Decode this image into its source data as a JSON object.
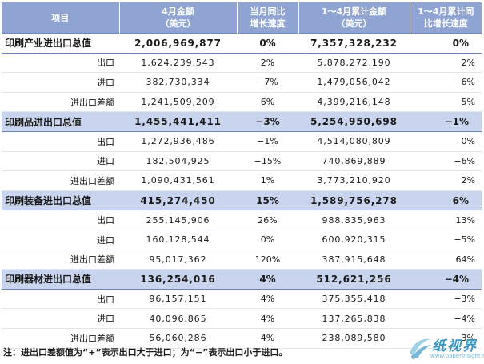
{
  "headers": [
    "项目",
    "4月金额\n（美元）",
    "当月同比\n增长速度",
    "1～4月累计金额\n（美元）",
    "1～4月累计同\n比增长速度"
  ],
  "rows": [
    {
      "type": "section",
      "label": "印刷产业进出口总值",
      "amount": "2,006,969,877",
      "yoy": "0%",
      "cum": "7,357,328,232",
      "cum_yoy": "0%"
    },
    {
      "type": "sub",
      "label": "出口",
      "amount": "1,624,239,543",
      "yoy": "2%",
      "cum": "5,878,272,190",
      "cum_yoy": "2%"
    },
    {
      "type": "sub",
      "label": "进口",
      "amount": "382,730,334",
      "yoy": "−7%",
      "cum": "1,479,056,042",
      "cum_yoy": "−6%"
    },
    {
      "type": "sub",
      "label": "进出口差额",
      "amount": "1,241,509,209",
      "yoy": "6%",
      "cum": "4,399,216,148",
      "cum_yoy": "5%"
    },
    {
      "type": "section",
      "label": "印刷品进出口总值",
      "amount": "1,455,441,411",
      "yoy": "−3%",
      "cum": "5,254,950,698",
      "cum_yoy": "−1%"
    },
    {
      "type": "sub",
      "label": "出口",
      "amount": "1,272,936,486",
      "yoy": "−1%",
      "cum": "4,514,080,809",
      "cum_yoy": "0%"
    },
    {
      "type": "sub",
      "label": "进口",
      "amount": "182,504,925",
      "yoy": "−15%",
      "cum": "740,869,889",
      "cum_yoy": "−6%"
    },
    {
      "type": "sub",
      "label": "进出口差额",
      "amount": "1,090,431,561",
      "yoy": "1%",
      "cum": "3,773,210,920",
      "cum_yoy": "2%"
    },
    {
      "type": "section",
      "label": "印刷装备进出口总值",
      "amount": "415,274,450",
      "yoy": "15%",
      "cum": "1,589,756,278",
      "cum_yoy": "6%"
    },
    {
      "type": "sub",
      "label": "出口",
      "amount": "255,145,906",
      "yoy": "26%",
      "cum": "988,835,963",
      "cum_yoy": "13%"
    },
    {
      "type": "sub",
      "label": "进口",
      "amount": "160,128,544",
      "yoy": "0%",
      "cum": "600,920,315",
      "cum_yoy": "−5%"
    },
    {
      "type": "sub",
      "label": "进出口差额",
      "amount": "95,017,362",
      "yoy": "120%",
      "cum": "387,915,648",
      "cum_yoy": "64%"
    },
    {
      "type": "section",
      "label": "印刷器材进出口总值",
      "amount": "136,254,016",
      "yoy": "4%",
      "cum": "512,621,256",
      "cum_yoy": "−4%"
    },
    {
      "type": "sub",
      "label": "出口",
      "amount": "96,157,151",
      "yoy": "4%",
      "cum": "375,355,418",
      "cum_yoy": "−3%"
    },
    {
      "type": "sub",
      "label": "进口",
      "amount": "40,096,865",
      "yoy": "4%",
      "cum": "137,265,838",
      "cum_yoy": "−4%"
    },
    {
      "type": "sub",
      "label": "进出口差额",
      "amount": "56,060,286",
      "yoy": "4%",
      "cum": "238,089,580",
      "cum_yoy": "−3%"
    }
  ],
  "note": "注：进出口差额值为“+”表示出口大于进口；为“−”表示出口小于进口。",
  "watermark": {
    "name": "纸视界",
    "url": "www.paperinsight.net"
  },
  "colors": {
    "header_bg": "#8fa4d2",
    "section_bg": "#c9d5ee",
    "logo": "#3a97c2"
  }
}
